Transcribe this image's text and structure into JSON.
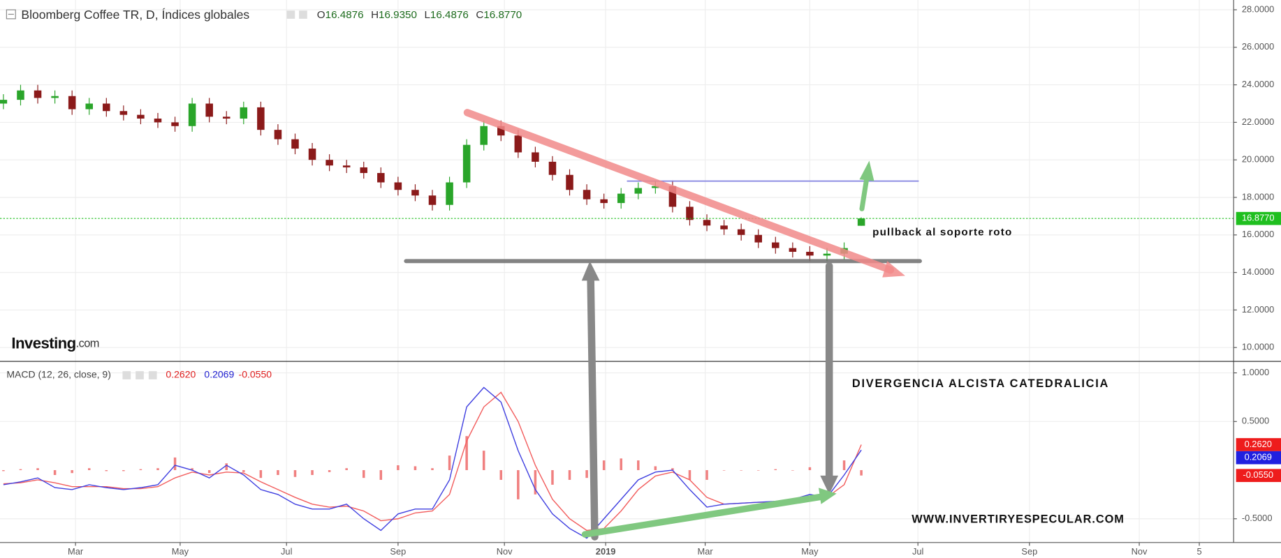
{
  "chart_data": [
    {
      "type": "candlestick",
      "title": "Bloomberg Coffee TR, D, Índices globales",
      "ohlc_prefixes": [
        "O",
        "H",
        "L",
        "C"
      ],
      "ohlc_labels": [
        "16.4876",
        "16.9350",
        "16.4876",
        "16.8770"
      ],
      "up_color": "#26a a1c",
      "down_color": "#8b1a1a",
      "x": [
        2,
        12,
        22,
        32,
        42,
        52,
        62,
        72,
        82,
        92,
        102,
        112,
        122,
        132,
        142,
        152,
        162,
        172,
        182,
        192,
        202,
        212,
        222,
        232,
        242,
        252,
        262,
        272,
        282,
        292,
        302,
        312,
        322,
        332,
        342,
        352,
        362,
        372,
        382,
        392,
        402,
        412,
        422,
        432,
        442,
        452,
        462,
        472,
        482,
        492,
        502
      ],
      "open": [
        23.0,
        23.2,
        23.7,
        23.3,
        23.4,
        22.7,
        23.0,
        22.6,
        22.4,
        22.2,
        22.0,
        21.8,
        23.0,
        22.3,
        22.2,
        22.8,
        21.6,
        21.1,
        20.6,
        20.0,
        19.7,
        19.6,
        19.3,
        18.8,
        18.4,
        18.1,
        17.6,
        18.8,
        20.8,
        21.8,
        21.3,
        20.4,
        19.9,
        19.2,
        18.4,
        17.9,
        17.7,
        18.2,
        18.5,
        18.6,
        17.5,
        16.8,
        16.5,
        16.3,
        16.0,
        15.6,
        15.3,
        15.1,
        14.9,
        15.0,
        16.4876
      ],
      "high": [
        23.5,
        24.0,
        24.0,
        23.7,
        23.7,
        23.3,
        23.3,
        22.9,
        22.7,
        22.5,
        22.3,
        23.3,
        23.3,
        22.6,
        23.1,
        23.1,
        21.9,
        21.4,
        20.9,
        20.3,
        20.0,
        19.9,
        19.6,
        19.1,
        18.7,
        18.4,
        19.1,
        21.1,
        22.1,
        22.1,
        21.6,
        20.7,
        20.2,
        19.5,
        18.7,
        18.2,
        18.5,
        18.8,
        18.9,
        18.9,
        17.8,
        17.1,
        16.8,
        16.6,
        16.3,
        15.9,
        15.6,
        15.4,
        15.3,
        15.6,
        16.935
      ],
      "low": [
        22.7,
        22.9,
        23.0,
        23.0,
        22.4,
        22.4,
        22.3,
        22.1,
        21.9,
        21.7,
        21.5,
        21.5,
        22.0,
        21.9,
        21.9,
        21.3,
        20.8,
        20.3,
        19.7,
        19.4,
        19.3,
        19.0,
        18.5,
        18.1,
        17.8,
        17.3,
        17.3,
        18.5,
        20.5,
        21.0,
        20.1,
        19.6,
        18.9,
        18.1,
        17.6,
        17.4,
        17.4,
        17.9,
        18.2,
        17.2,
        16.5,
        16.2,
        16.0,
        15.7,
        15.3,
        15.0,
        14.8,
        14.6,
        14.6,
        14.7,
        16.4876
      ],
      "close": [
        23.2,
        23.7,
        23.3,
        23.4,
        22.7,
        23.0,
        22.6,
        22.4,
        22.2,
        22.0,
        21.8,
        23.0,
        22.3,
        22.2,
        22.8,
        21.6,
        21.1,
        20.6,
        20.0,
        19.7,
        19.6,
        19.3,
        18.8,
        18.4,
        18.1,
        17.6,
        18.8,
        20.8,
        21.8,
        21.3,
        20.4,
        19.9,
        19.2,
        18.4,
        17.9,
        17.7,
        18.2,
        18.5,
        18.6,
        17.5,
        16.8,
        16.5,
        16.3,
        16.0,
        15.6,
        15.3,
        15.1,
        14.9,
        15.0,
        15.3,
        16.877
      ],
      "last_color": "#1fbf1f",
      "xlim": [
        0,
        719
      ],
      "xticks": [
        {
          "value": 44,
          "label": "Mar"
        },
        {
          "value": 105,
          "label": "May"
        },
        {
          "value": 167,
          "label": "Jul"
        },
        {
          "value": 232,
          "label": "Sep"
        },
        {
          "value": 294,
          "label": "Nov"
        },
        {
          "value": 353,
          "label": "2019"
        },
        {
          "value": 411,
          "label": "Mar"
        },
        {
          "value": 472,
          "label": "May"
        },
        {
          "value": 535,
          "label": "Jul"
        },
        {
          "value": 600,
          "label": "Sep"
        },
        {
          "value": 664,
          "label": "Nov"
        },
        {
          "value": 699,
          "label": "5"
        }
      ],
      "ylim": [
        9.26,
        28.52
      ],
      "yticks": [
        {
          "value": 10,
          "label": "10.0000"
        },
        {
          "value": 12,
          "label": "12.0000"
        },
        {
          "value": 14,
          "label": "14.0000"
        },
        {
          "value": 16,
          "label": "16.0000"
        },
        {
          "value": 18,
          "label": "18.0000"
        },
        {
          "value": 20,
          "label": "20.0000"
        },
        {
          "value": 22,
          "label": "22.0000"
        },
        {
          "value": 24,
          "label": "24.0000"
        },
        {
          "value": 26,
          "label": "26.0000"
        },
        {
          "value": 28,
          "label": "28.0000"
        }
      ],
      "grid": true,
      "annotations": [
        "pullback al soporte roto",
        "DIVERGENCIA ALCISTA CATEDRALICIA",
        "WWW.INVERTIRYESPECULAR.COM"
      ],
      "logo": [
        "Investing",
        ".com"
      ]
    },
    {
      "type": "macd",
      "legend_title": "MACD (12, 26, close, 9)",
      "series": [
        {
          "color": "#f25c5c",
          "value_label": "0.2620",
          "values": [
            -0.14,
            -0.13,
            -0.1,
            -0.13,
            -0.17,
            -0.17,
            -0.17,
            -0.19,
            -0.19,
            -0.17,
            -0.08,
            -0.02,
            -0.05,
            -0.02,
            -0.03,
            -0.12,
            -0.2,
            -0.28,
            -0.35,
            -0.38,
            -0.37,
            -0.42,
            -0.52,
            -0.5,
            -0.44,
            -0.42,
            -0.25,
            0.3,
            0.65,
            0.8,
            0.5,
            0.05,
            -0.3,
            -0.5,
            -0.62,
            -0.6,
            -0.42,
            -0.2,
            -0.06,
            -0.02,
            -0.1,
            -0.28,
            -0.35,
            -0.34,
            -0.33,
            -0.33,
            -0.3,
            -0.28,
            -0.28,
            -0.15,
            0.262
          ]
        },
        {
          "color": "#3f3fe0",
          "value_label": "0.2069",
          "values": [
            -0.15,
            -0.12,
            -0.08,
            -0.18,
            -0.2,
            -0.15,
            -0.18,
            -0.2,
            -0.18,
            -0.15,
            0.05,
            0.0,
            -0.08,
            0.05,
            -0.05,
            -0.2,
            -0.25,
            -0.35,
            -0.4,
            -0.4,
            -0.35,
            -0.5,
            -0.62,
            -0.45,
            -0.4,
            -0.4,
            -0.1,
            0.65,
            0.85,
            0.7,
            0.2,
            -0.2,
            -0.45,
            -0.6,
            -0.7,
            -0.5,
            -0.3,
            -0.1,
            -0.02,
            0.0,
            -0.2,
            -0.38,
            -0.35,
            -0.34,
            -0.33,
            -0.32,
            -0.3,
            -0.25,
            -0.28,
            -0.05,
            0.2069
          ]
        }
      ],
      "histogram": {
        "color": "#f08080",
        "value_label": "-0.0550",
        "values": [
          -0.01,
          0.01,
          0.02,
          -0.05,
          -0.03,
          0.02,
          -0.01,
          -0.01,
          0.01,
          0.02,
          0.13,
          0.02,
          -0.03,
          0.07,
          -0.02,
          -0.08,
          -0.05,
          -0.07,
          -0.05,
          -0.02,
          0.02,
          -0.08,
          -0.1,
          0.05,
          0.04,
          0.02,
          0.15,
          0.35,
          0.2,
          -0.1,
          -0.3,
          -0.25,
          -0.15,
          -0.1,
          -0.08,
          0.1,
          0.12,
          0.1,
          0.04,
          0.02,
          -0.1,
          -0.1,
          0,
          0,
          0,
          0.01,
          0,
          0.03,
          0,
          0.1,
          -0.055
        ]
      },
      "ylim": [
        -0.744,
        1.118
      ],
      "yticks": [
        {
          "value": -0.5,
          "label": "-0.5000"
        },
        {
          "value": 0.5,
          "label": "0.5000"
        },
        {
          "value": 1,
          "label": "1.0000"
        }
      ],
      "grid": true
    }
  ]
}
